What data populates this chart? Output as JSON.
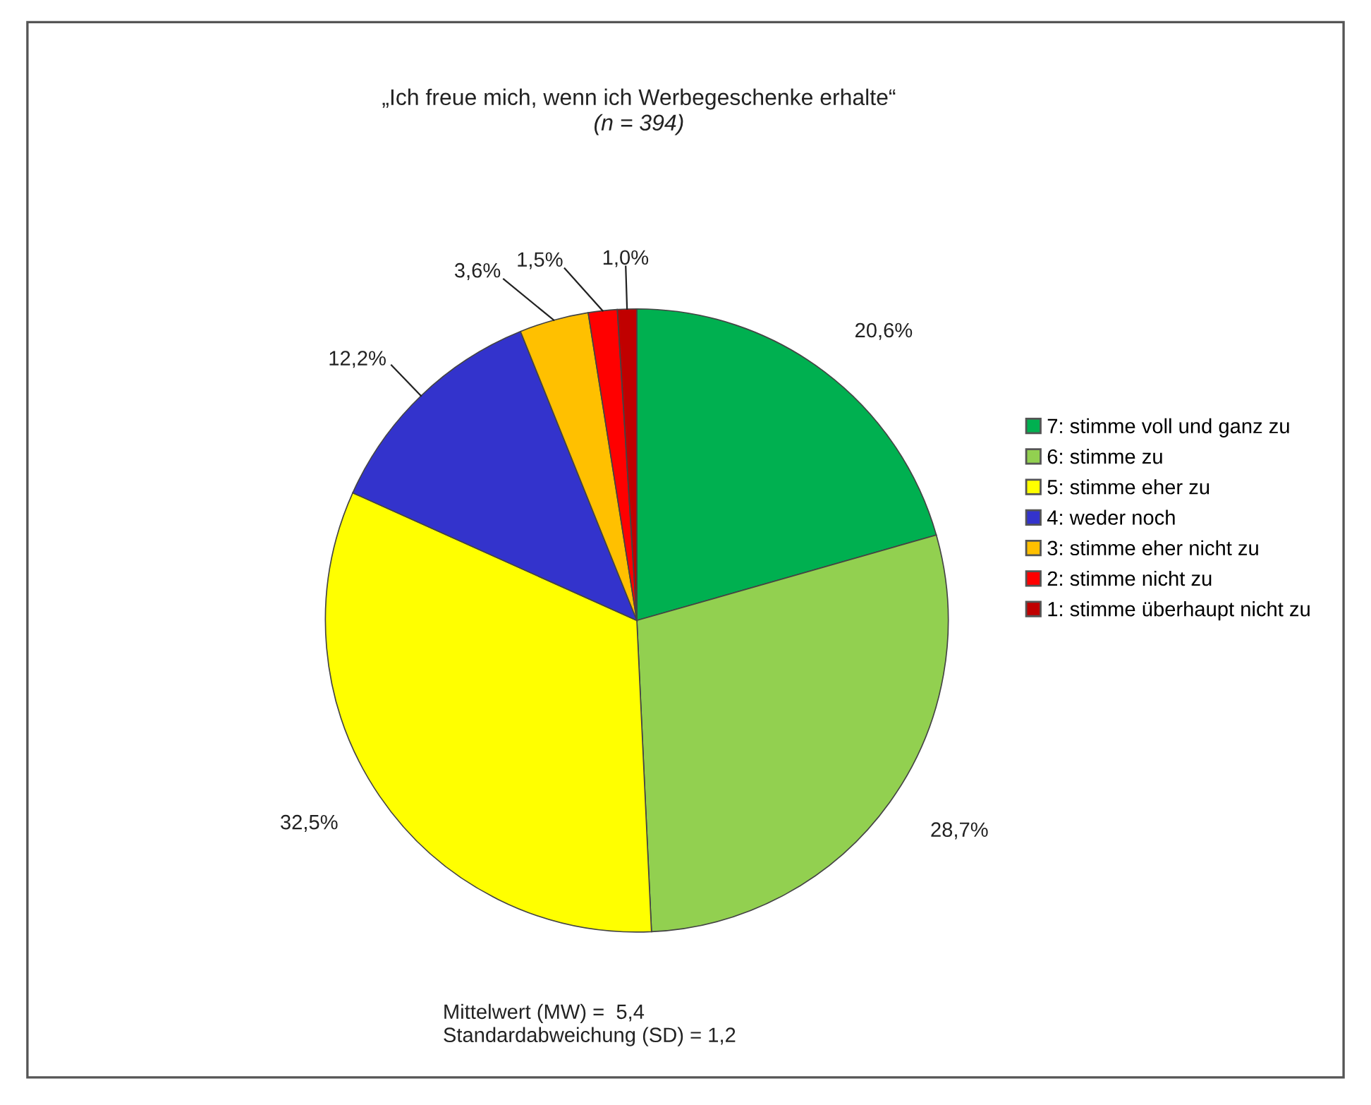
{
  "chart_data": {
    "type": "pie",
    "title": "„Ich freue mich, wenn ich Werbegeschenke erhalte“",
    "subtitle": "(n = 394)",
    "categories": [
      "7: stimme voll und ganz zu",
      "6: stimme zu",
      "5: stimme eher zu",
      "4: weder noch",
      "3: stimme eher nicht zu",
      "2: stimme nicht zu",
      "1: stimme überhaupt nicht zu"
    ],
    "values": [
      20.6,
      28.7,
      32.5,
      12.2,
      3.6,
      1.5,
      1.0
    ],
    "value_labels": [
      "20,6%",
      "28,7%",
      "32,5%",
      "12,2%",
      "3,6%",
      "1,5%",
      "1,0%"
    ],
    "colors": [
      "#00b050",
      "#92d050",
      "#ffff00",
      "#3333cc",
      "#ffc000",
      "#ff0000",
      "#c00000"
    ],
    "legend": "right",
    "annotations": [
      "Mittelwert (MW) =  5,4",
      "Standardabweichung (SD) = 1,2"
    ]
  }
}
